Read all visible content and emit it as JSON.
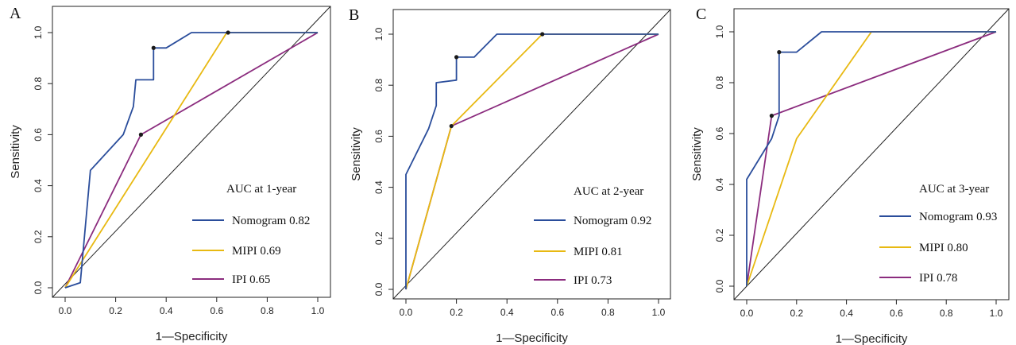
{
  "colors": {
    "nomogram": "#2a4d9b",
    "mipi": "#e8b912",
    "ipi": "#8b2c7e",
    "diagonal": "#222222",
    "cutoff_point": "#1a1a1a"
  },
  "chart_data": [
    {
      "type": "line",
      "panel_label": "A",
      "xlabel": "1—Specificity",
      "ylabel": "Sensitivity",
      "xlim": [
        0,
        1
      ],
      "ylim": [
        0,
        1
      ],
      "xticks": [
        "0.0",
        "0.2",
        "0.4",
        "0.6",
        "0.8",
        "1.0"
      ],
      "yticks": [
        "0.0",
        "0.2",
        "0.4",
        "0.6",
        "0.8",
        "1.0"
      ],
      "grid": false,
      "legend_placement": "bottom-right",
      "legend_title": "AUC at 1-year",
      "series": [
        {
          "name": "Nomogram 0.82",
          "color_key": "nomogram",
          "x": [
            0,
            0.06,
            0.1,
            0.23,
            0.27,
            0.28,
            0.35,
            0.35,
            0.35,
            0.4,
            0.5,
            0.65,
            1.0
          ],
          "y": [
            0,
            0.02,
            0.46,
            0.6,
            0.71,
            0.815,
            0.815,
            0.94,
            0.94,
            0.94,
            1.0,
            1.0,
            1.0
          ],
          "cutoff": [
            0.35,
            0.94
          ]
        },
        {
          "name": "MIPI 0.69",
          "color_key": "mipi",
          "x": [
            0,
            0.32,
            0.64,
            1.0
          ],
          "y": [
            0,
            0.5,
            1.0,
            1.0
          ],
          "cutoff": [
            0.645,
            1.0
          ]
        },
        {
          "name": "IPI 0.65",
          "color_key": "ipi",
          "x": [
            0,
            0.3,
            1.0
          ],
          "y": [
            0,
            0.6,
            1.0
          ],
          "cutoff": [
            0.3,
            0.6
          ]
        }
      ]
    },
    {
      "type": "line",
      "panel_label": "B",
      "xlabel": "1—Specificity",
      "ylabel": "Sensitivity",
      "xlim": [
        0,
        1
      ],
      "ylim": [
        0,
        1
      ],
      "xticks": [
        "0.0",
        "0.2",
        "0.4",
        "0.6",
        "0.8",
        "1.0"
      ],
      "yticks": [
        "0.0",
        "0.2",
        "0.4",
        "0.6",
        "0.8",
        "1.0"
      ],
      "grid": false,
      "legend_placement": "bottom-right",
      "legend_title": "AUC at 2-year",
      "series": [
        {
          "name": "Nomogram 0.92",
          "color_key": "nomogram",
          "x": [
            0,
            0,
            0.09,
            0.12,
            0.12,
            0.2,
            0.2,
            0.27,
            0.36,
            0.54,
            1.0
          ],
          "y": [
            0,
            0.45,
            0.63,
            0.72,
            0.81,
            0.82,
            0.91,
            0.91,
            1.0,
            1.0,
            1.0
          ],
          "cutoff": [
            0.2,
            0.91
          ]
        },
        {
          "name": "MIPI 0.81",
          "color_key": "mipi",
          "x": [
            0,
            0.18,
            0.54,
            1.0
          ],
          "y": [
            0,
            0.64,
            1.0,
            1.0
          ],
          "cutoff": [
            0.54,
            1.0
          ]
        },
        {
          "name": "IPI 0.73",
          "color_key": "ipi",
          "x": [
            0,
            0.18,
            1.0
          ],
          "y": [
            0,
            0.64,
            1.0
          ],
          "cutoff": [
            0.18,
            0.64
          ]
        }
      ]
    },
    {
      "type": "line",
      "panel_label": "C",
      "xlabel": "1—Specificity",
      "ylabel": "Sensitivity",
      "xlim": [
        0,
        1
      ],
      "ylim": [
        0,
        1
      ],
      "xticks": [
        "0.0",
        "0.2",
        "0.4",
        "0.6",
        "0.8",
        "1.0"
      ],
      "yticks": [
        "0.0",
        "0.2",
        "0.4",
        "0.6",
        "0.8",
        "1.0"
      ],
      "grid": false,
      "legend_placement": "bottom-right",
      "legend_title": "AUC at 3-year",
      "series": [
        {
          "name": "Nomogram 0.93",
          "color_key": "nomogram",
          "x": [
            0,
            0,
            0.1,
            0.13,
            0.13,
            0.2,
            0.3,
            0.5,
            1.0
          ],
          "y": [
            0,
            0.42,
            0.58,
            0.67,
            0.92,
            0.92,
            1.0,
            1.0,
            1.0
          ],
          "cutoff": [
            0.13,
            0.92
          ]
        },
        {
          "name": "MIPI 0.80",
          "color_key": "mipi",
          "x": [
            0,
            0.2,
            0.5,
            1.0
          ],
          "y": [
            0,
            0.58,
            1.0,
            1.0
          ],
          "cutoff": null
        },
        {
          "name": "IPI 0.78",
          "color_key": "ipi",
          "x": [
            0,
            0.1,
            1.0
          ],
          "y": [
            0,
            0.67,
            1.0
          ],
          "cutoff": [
            0.1,
            0.67
          ]
        }
      ]
    }
  ]
}
